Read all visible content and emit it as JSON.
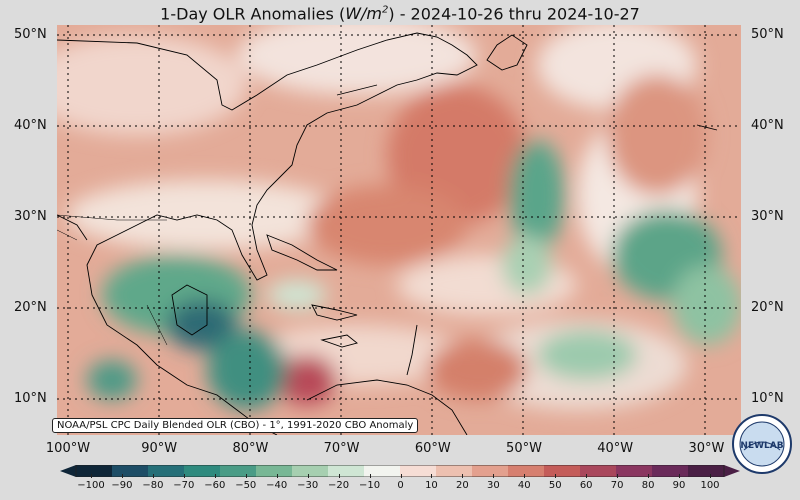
{
  "title": {
    "prefix": "1-Day OLR Anomalies (",
    "unit_base": "W/m",
    "unit_exp": "2",
    "suffix": ") - 2024-10-26 thru 2024-10-27"
  },
  "credit_text": "NOAA/PSL CPC Daily Blended OLR (CBO) - 1°, 1991-2020 CBO Anomaly",
  "lat_labels": [
    {
      "text": "50°N",
      "lat": 50
    },
    {
      "text": "40°N",
      "lat": 40
    },
    {
      "text": "30°N",
      "lat": 30
    },
    {
      "text": "20°N",
      "lat": 20
    },
    {
      "text": "10°N",
      "lat": 10
    }
  ],
  "lon_labels": [
    {
      "text": "100°W",
      "lon": -100
    },
    {
      "text": "90°W",
      "lon": -90
    },
    {
      "text": "80°W",
      "lon": -80
    },
    {
      "text": "70°W",
      "lon": -70
    },
    {
      "text": "60°W",
      "lon": -60
    },
    {
      "text": "50°W",
      "lon": -50
    },
    {
      "text": "40°W",
      "lon": -40
    },
    {
      "text": "30°W",
      "lon": -30
    }
  ],
  "colorbar": {
    "ticks": [
      "−100",
      "−90",
      "−80",
      "−70",
      "−60",
      "−50",
      "−40",
      "−30",
      "−20",
      "−10",
      "0",
      "10",
      "20",
      "30",
      "40",
      "50",
      "60",
      "70",
      "80",
      "90",
      "100"
    ],
    "stops": [
      "#0f2638",
      "#1d4d66",
      "#256f78",
      "#2e8a7e",
      "#4a9c86",
      "#78b795",
      "#a6cfb0",
      "#cfe6d4",
      "#f2f4ef",
      "#f6ddd5",
      "#edc0b0",
      "#e3a08e",
      "#d67f6f",
      "#c45c59",
      "#a9475c",
      "#8a3660",
      "#6a2a5a",
      "#4a1f45"
    ]
  },
  "colors": {
    "negative_anomaly": "#2e8a7e",
    "positive_anomaly": "#d67f6f",
    "background": "#dcdcdc",
    "coast": "#000000"
  },
  "logo_text": "NEWLAB"
}
